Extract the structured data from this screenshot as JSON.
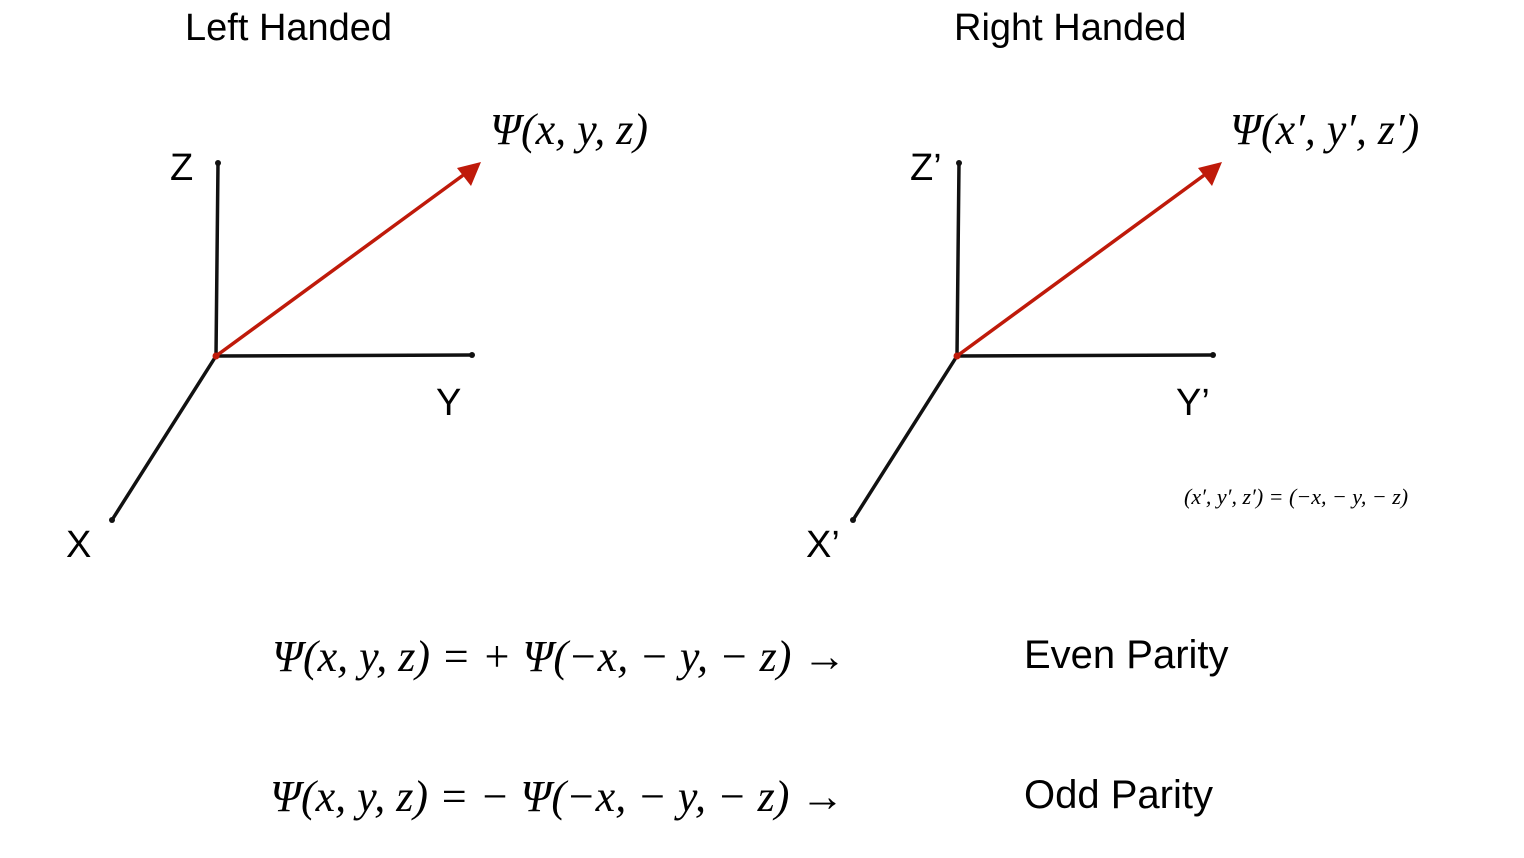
{
  "left_panel": {
    "title": "Left Handed",
    "axis_x": "X",
    "axis_y": "Y",
    "axis_z": "Z",
    "vector_label": "Ψ(x, y, z)"
  },
  "right_panel": {
    "title": "Right Handed",
    "axis_x": "X’",
    "axis_y": "Y’",
    "axis_z": "Z’",
    "vector_label": "Ψ(x′, y′, z′)",
    "relation": "(x′, y′, z′) = (−x, − y, − z)"
  },
  "equations": [
    {
      "expression": "Ψ(x, y, z) = + Ψ(−x, − y, − z) →",
      "label": "Even Parity"
    },
    {
      "expression": "Ψ(x, y, z) = − Ψ(−x, − y, − z) →",
      "label": "Odd Parity"
    }
  ],
  "colors": {
    "vector": "#bf1a0a",
    "axes": "#111111"
  }
}
